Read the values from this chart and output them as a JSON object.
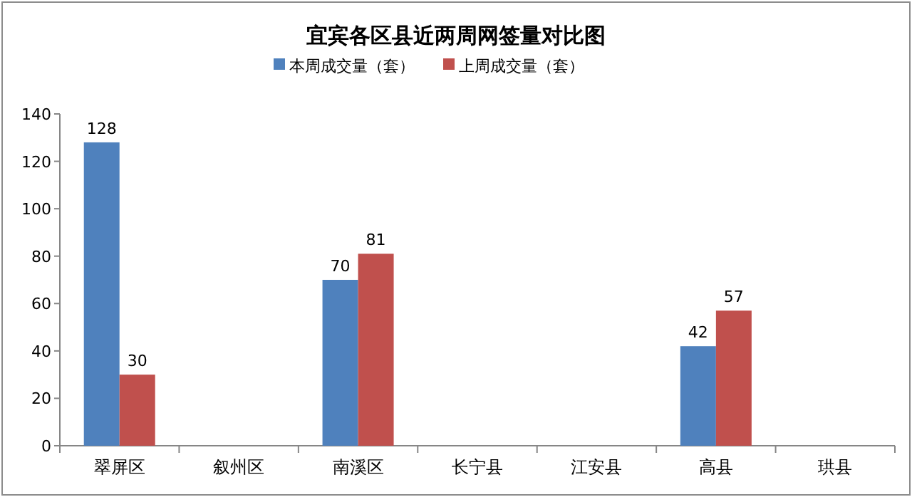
{
  "chart_data": {
    "type": "bar",
    "title": "宜宾各区县近两周网签量对比图",
    "categories": [
      "翠屏区",
      "叙州区",
      "南溪区",
      "长宁县",
      "江安县",
      "高县",
      "珙县"
    ],
    "series": [
      {
        "name": "本周成交量（套）",
        "color": "#4f81bd",
        "values": [
          128,
          null,
          70,
          null,
          null,
          42,
          null
        ]
      },
      {
        "name": "上周成交量（套）",
        "color": "#c0504d",
        "values": [
          30,
          null,
          81,
          null,
          null,
          57,
          null
        ]
      }
    ],
    "ylim": [
      0,
      140
    ],
    "yticks": [
      0,
      20,
      40,
      60,
      80,
      100,
      120,
      140
    ],
    "data_labels": true,
    "legend": "top",
    "grid": false
  }
}
